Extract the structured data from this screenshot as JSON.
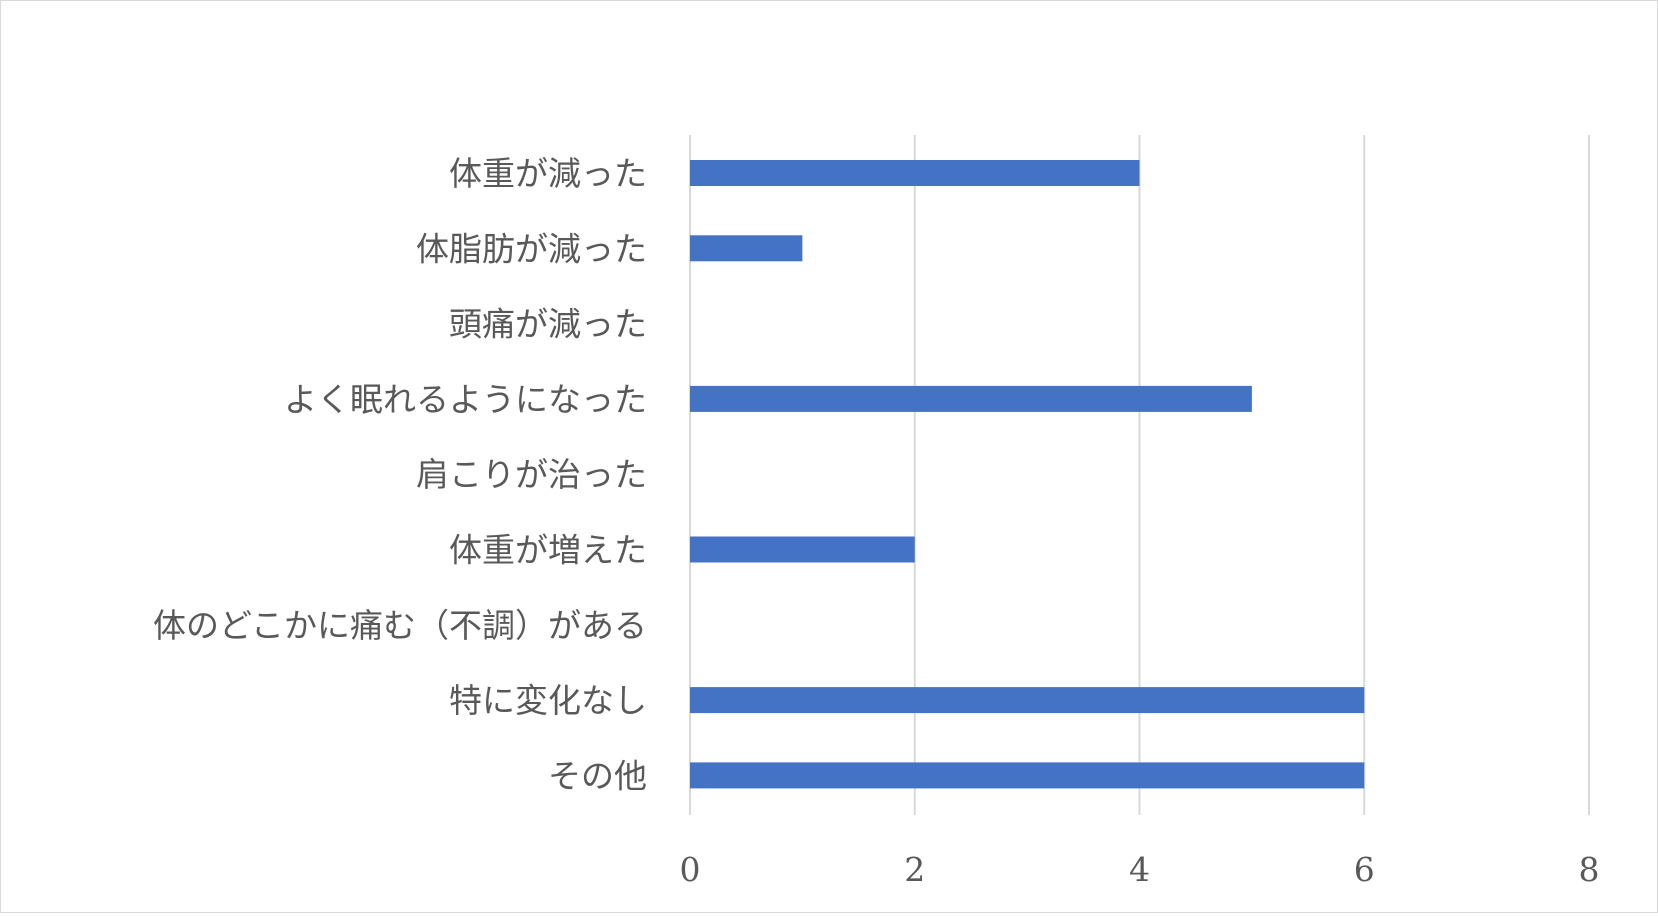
{
  "chart_data": {
    "type": "bar",
    "orientation": "horizontal",
    "categories": [
      "体重が減った",
      "体脂肪が減った",
      "頭痛が減った",
      "よく眠れるようになった",
      "肩こりが治った",
      "体重が増えた",
      "体のどこかに痛む（不調）がある",
      "特に変化なし",
      "その他"
    ],
    "values": [
      4,
      1,
      0,
      5,
      0,
      2,
      0,
      6,
      6
    ],
    "xlim": [
      0,
      8
    ],
    "xticks": [
      "0",
      "2",
      "4",
      "6",
      "8"
    ],
    "grid": true,
    "legend": "none",
    "bar_color": "#4472C4",
    "grid_color": "#d9d9d9"
  }
}
